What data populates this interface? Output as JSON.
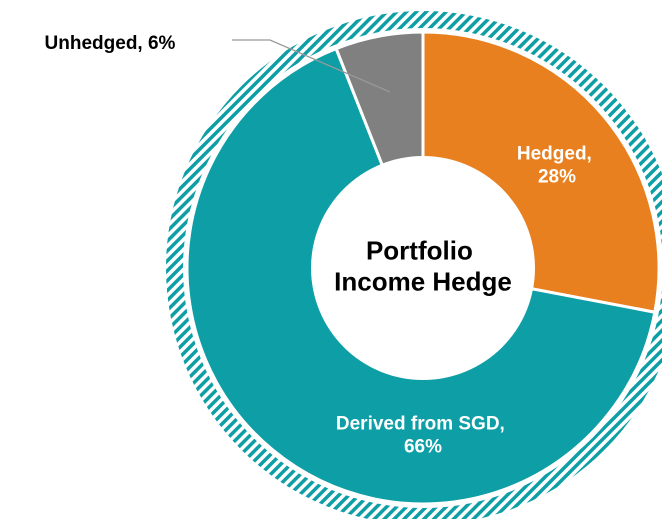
{
  "chart_data": {
    "type": "donut",
    "title": "Portfolio Income Hedge",
    "categories": [
      "Hedged",
      "Derived from SGD",
      "Unhedged"
    ],
    "values": [
      28,
      66,
      6
    ],
    "value_labels": [
      "Hedged, 28%",
      "Derived from SGD, 66%",
      "Unhedged, 6%"
    ],
    "colors": [
      "#e8801f",
      "#0e9ea5",
      "#808080"
    ]
  }
}
